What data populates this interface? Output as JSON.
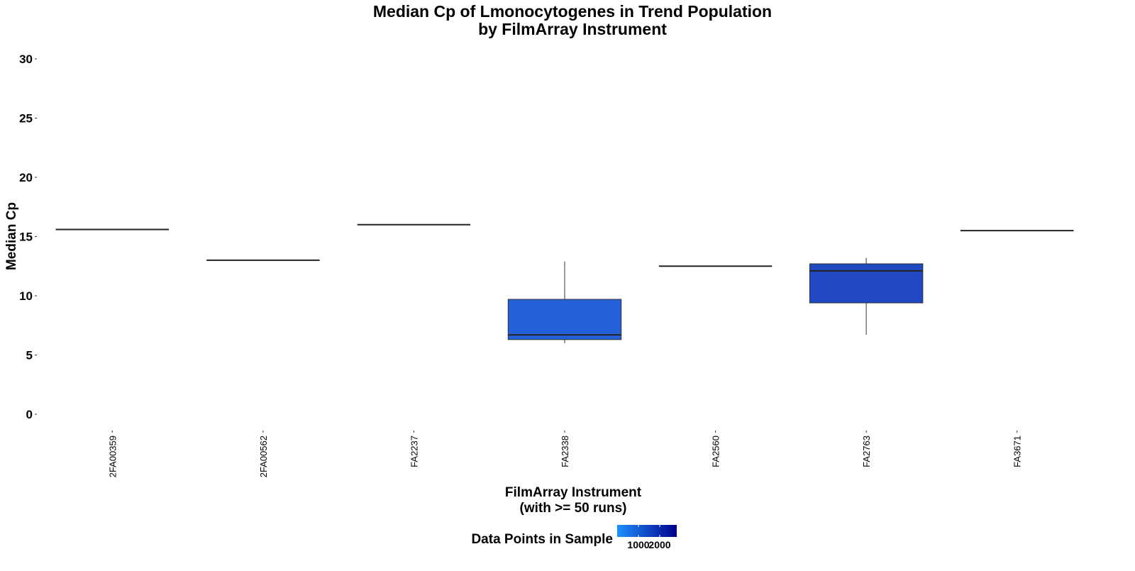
{
  "chart_data": {
    "type": "boxplot",
    "title": "Median Cp of Lmonocytogenes in Trend Population",
    "subtitle": "by FilmArray Instrument",
    "xlabel": "FilmArray Instrument",
    "xlabel_sub": "(with >= 50 runs)",
    "ylabel": "Median Cp",
    "ylim": [
      0,
      30
    ],
    "yticks": [
      0,
      5,
      10,
      15,
      20,
      25,
      30
    ],
    "grid": false,
    "categories": [
      "2FA00359",
      "2FA00562",
      "FA2237",
      "FA2338",
      "FA2560",
      "FA2763",
      "FA3671"
    ],
    "boxes": [
      {
        "category": "2FA00359",
        "min": 15.6,
        "q1": 15.6,
        "median": 15.6,
        "q3": 15.6,
        "max": 15.6,
        "color": "#1e90ff"
      },
      {
        "category": "2FA00562",
        "min": 13.0,
        "q1": 13.0,
        "median": 13.0,
        "q3": 13.0,
        "max": 13.0,
        "color": "#1e90ff"
      },
      {
        "category": "FA2237",
        "min": 16.0,
        "q1": 16.0,
        "median": 16.0,
        "q3": 16.0,
        "max": 16.0,
        "color": "#1e90ff"
      },
      {
        "category": "FA2338",
        "min": 6.0,
        "q1": 6.3,
        "median": 6.7,
        "q3": 9.7,
        "max": 12.9,
        "color": "#2460d8"
      },
      {
        "category": "FA2560",
        "min": 12.5,
        "q1": 12.5,
        "median": 12.5,
        "q3": 12.5,
        "max": 12.5,
        "color": "#1e90ff"
      },
      {
        "category": "FA2763",
        "min": 6.7,
        "q1": 9.4,
        "median": 12.1,
        "q3": 12.7,
        "max": 13.2,
        "color": "#2048c0"
      },
      {
        "category": "FA3671",
        "min": 15.5,
        "q1": 15.5,
        "median": 15.5,
        "q3": 15.5,
        "max": 15.5,
        "color": "#1e90ff"
      }
    ],
    "legend": {
      "title": "Data Points in Sample",
      "placement": "bottom",
      "ticks": [
        1000,
        2000
      ],
      "tick_labels": [
        "1000",
        "2000"
      ],
      "gradient_low": "#1e90ff",
      "gradient_high": "#00008b"
    }
  }
}
